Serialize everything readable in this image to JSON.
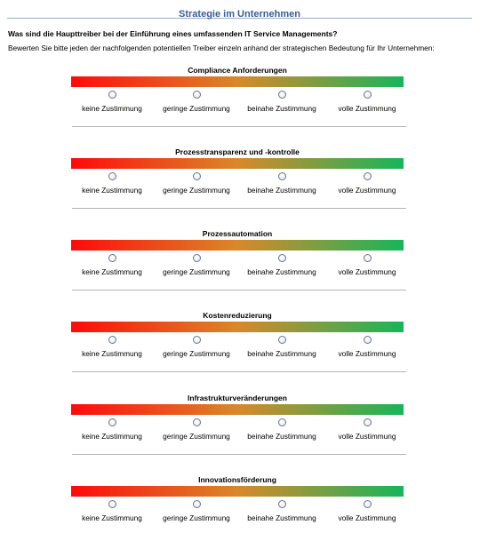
{
  "header": {
    "title": "Strategie im Unternehmen"
  },
  "question": "Was sind die Haupttreiber bei der Einführung eines umfassenden IT Service Managements?",
  "instruction": "Bewerten Sie bitte jeden der nachfolgenden potentiellen Treiber einzeln anhand der strategischen Bedeutung für Ihr Unternehmen:",
  "scale": {
    "options": [
      "keine Zustimmung",
      "geringe Zustimmung",
      "beinahe Zustimmung",
      "volle Zustimmung"
    ],
    "gradient_colors": [
      "#ff0a0a",
      "#d9882a",
      "#16b65a"
    ],
    "radio_border_color": "#6b7689"
  },
  "drivers": [
    {
      "label": "Compliance Anforderungen",
      "selected": null
    },
    {
      "label": "Prozesstransparenz und -kontrolle",
      "selected": null
    },
    {
      "label": "Prozessautomation",
      "selected": null
    },
    {
      "label": "Kostenreduzierung",
      "selected": null
    },
    {
      "label": "Infrastrukturveränderungen",
      "selected": null
    },
    {
      "label": "Innovationsförderung",
      "selected": null
    }
  ],
  "colors": {
    "title_text": "#3b5c9a",
    "title_rule": "#9aaecb",
    "divider": "#b5b5b5"
  }
}
